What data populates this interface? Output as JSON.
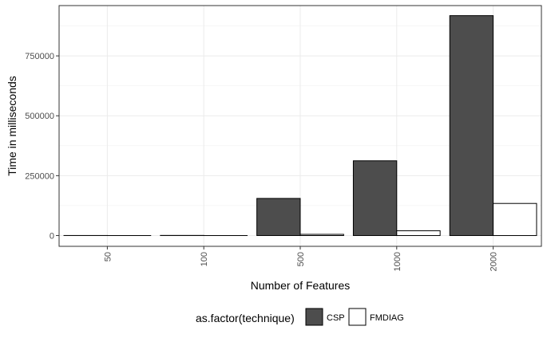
{
  "chart_data": {
    "type": "bar",
    "xlabel": "Number of Features",
    "ylabel": "Time in milliseconds",
    "categories": [
      "50",
      "100",
      "500",
      "1000",
      "2000"
    ],
    "series": [
      {
        "name": "CSP",
        "values": [
          200,
          500,
          155000,
          312000,
          918000
        ],
        "color": "#4d4d4d"
      },
      {
        "name": "FMDIAG",
        "values": [
          0,
          0,
          5000,
          20000,
          134000
        ],
        "color": "#ffffff"
      }
    ],
    "ylim": [
      -45000,
      960000
    ],
    "yticks": [
      0,
      250000,
      500000,
      750000
    ],
    "ytick_labels": [
      "0",
      "250000",
      "500000",
      "750000"
    ],
    "grid": true,
    "legend": {
      "title": "as.factor(technique)",
      "position": "bottom"
    }
  }
}
